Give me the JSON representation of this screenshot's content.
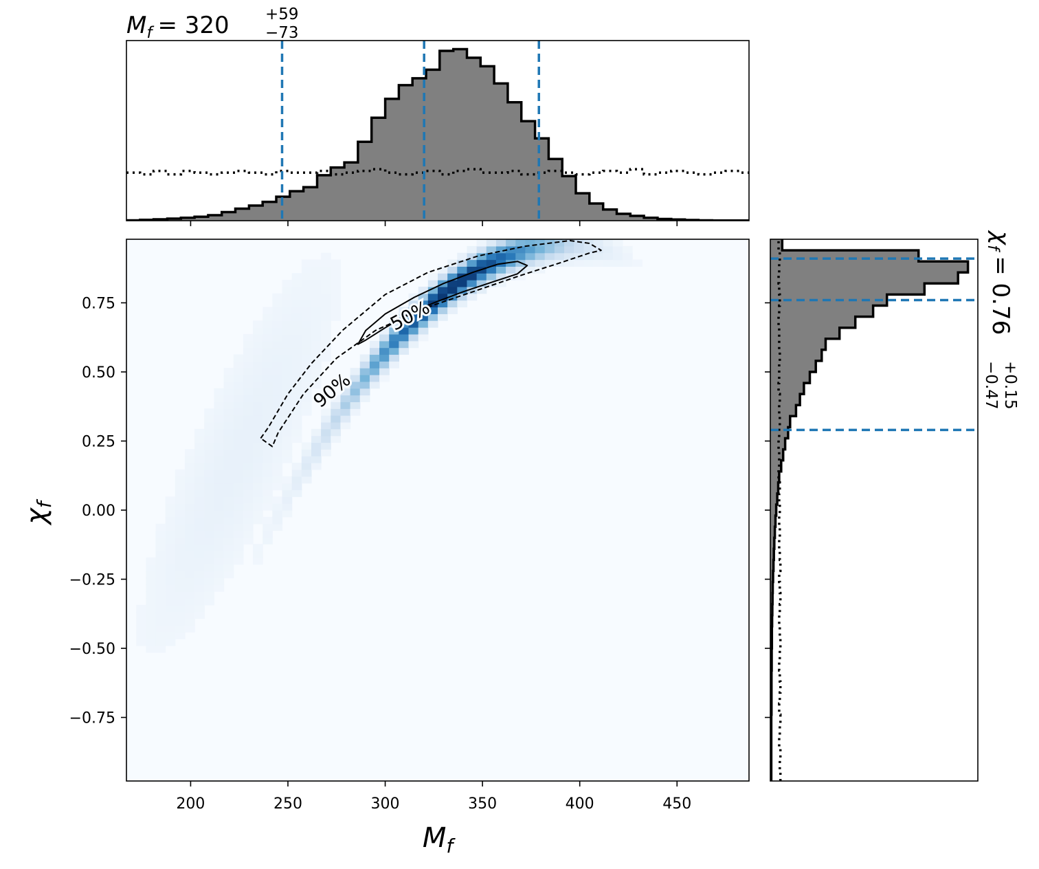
{
  "chart_data": [
    {
      "type": "heatmap",
      "panel": "joint",
      "xlabel": "M_f",
      "ylabel": "χ_f",
      "xlim": [
        167,
        487
      ],
      "ylim": [
        -0.98,
        0.98
      ],
      "xticks": [
        200,
        250,
        300,
        350,
        400,
        450
      ],
      "xtick_labels": [
        "200",
        "250",
        "300",
        "350",
        "400",
        "450"
      ],
      "yticks": [
        0.75,
        0.5,
        0.25,
        0.0,
        -0.25,
        -0.5,
        -0.75
      ],
      "ytick_labels": [
        "0.75",
        "0.50",
        "0.25",
        "0.00",
        "−0.25",
        "−0.50",
        "−0.75"
      ],
      "colormap": "Blues",
      "density_peak": {
        "x": 335,
        "y": 0.81
      },
      "contours": [
        {
          "label": "50%",
          "style": "solid",
          "points": [
            [
              286,
              0.6
            ],
            [
              290,
              0.65
            ],
            [
              300,
              0.71
            ],
            [
              315,
              0.77
            ],
            [
              330,
              0.82
            ],
            [
              345,
              0.86
            ],
            [
              358,
              0.89
            ],
            [
              368,
              0.9
            ],
            [
              373,
              0.885
            ],
            [
              368,
              0.855
            ],
            [
              355,
              0.825
            ],
            [
              340,
              0.79
            ],
            [
              325,
              0.75
            ],
            [
              312,
              0.71
            ],
            [
              300,
              0.66
            ],
            [
              290,
              0.615
            ]
          ]
        },
        {
          "label": "90%",
          "style": "dashed",
          "points": [
            [
              236,
              0.26
            ],
            [
              240,
              0.3
            ],
            [
              250,
              0.42
            ],
            [
              262,
              0.53
            ],
            [
              278,
              0.65
            ],
            [
              300,
              0.78
            ],
            [
              322,
              0.86
            ],
            [
              348,
              0.92
            ],
            [
              372,
              0.955
            ],
            [
              395,
              0.975
            ],
            [
              405,
              0.965
            ],
            [
              411,
              0.94
            ],
            [
              405,
              0.93
            ],
            [
              390,
              0.895
            ],
            [
              370,
              0.85
            ],
            [
              345,
              0.79
            ],
            [
              320,
              0.73
            ],
            [
              295,
              0.65
            ],
            [
              275,
              0.55
            ],
            [
              258,
              0.42
            ],
            [
              245,
              0.28
            ],
            [
              242,
              0.23
            ]
          ]
        }
      ],
      "contour_labels": [
        {
          "text": "50%",
          "x": 313,
          "y": 0.7,
          "angle": -28
        },
        {
          "text": "90%",
          "x": 273,
          "y": 0.43,
          "angle": -40
        }
      ]
    },
    {
      "type": "bar",
      "panel": "top-marginal",
      "title": "M_f = 320 +59 −73",
      "title_parts": {
        "symbol": "M",
        "subscript": "f",
        "equals": "= 320",
        "sup": "+59",
        "sub": "−73"
      },
      "bin_edges": [
        167,
        174,
        181,
        188,
        195,
        202,
        209,
        216,
        223,
        230,
        237,
        244,
        251,
        258,
        265,
        272,
        279,
        286,
        293,
        300,
        307,
        314,
        321,
        328,
        335,
        342,
        349,
        356,
        363,
        370,
        377,
        384,
        391,
        398,
        405,
        412,
        419,
        426,
        433,
        440,
        447,
        454,
        461,
        468,
        475,
        482,
        487
      ],
      "values": [
        0.002,
        0.005,
        0.008,
        0.012,
        0.017,
        0.023,
        0.032,
        0.05,
        0.07,
        0.088,
        0.11,
        0.14,
        0.172,
        0.195,
        0.265,
        0.31,
        0.34,
        0.46,
        0.6,
        0.71,
        0.79,
        0.83,
        0.88,
        0.99,
        1.0,
        0.95,
        0.9,
        0.8,
        0.69,
        0.58,
        0.48,
        0.36,
        0.26,
        0.16,
        0.1,
        0.065,
        0.04,
        0.028,
        0.017,
        0.01,
        0.007,
        0.004,
        0.002,
        0.001,
        0.001,
        0.001
      ],
      "prior_values": [
        0.28,
        0.27,
        0.29,
        0.27,
        0.29,
        0.28,
        0.27,
        0.28,
        0.29,
        0.28,
        0.27,
        0.29,
        0.28,
        0.28,
        0.29,
        0.27,
        0.28,
        0.29,
        0.3,
        0.28,
        0.27,
        0.28,
        0.29,
        0.27,
        0.29,
        0.3,
        0.28,
        0.28,
        0.29,
        0.27,
        0.28,
        0.29,
        0.28,
        0.27,
        0.28,
        0.29,
        0.28,
        0.3,
        0.27,
        0.28,
        0.29,
        0.28,
        0.27,
        0.28,
        0.29,
        0.28
      ],
      "ylim": [
        0,
        1.05
      ],
      "quantile_lines": [
        247,
        320,
        379
      ],
      "quantile_color": "#1f77b4",
      "fill_color": "#808080"
    },
    {
      "type": "bar",
      "panel": "right-marginal",
      "orientation": "horizontal",
      "title": "χ_f = 0.76 +0.15 −0.47",
      "title_parts": {
        "symbol": "χ",
        "subscript": "f",
        "equals": "= 0.76",
        "sup": "+0.15",
        "sub": "−0.47"
      },
      "bin_edges": [
        -0.98,
        -0.94,
        -0.9,
        -0.86,
        -0.82,
        -0.78,
        -0.74,
        -0.7,
        -0.66,
        -0.62,
        -0.58,
        -0.54,
        -0.5,
        -0.46,
        -0.42,
        -0.38,
        -0.34,
        -0.3,
        -0.26,
        -0.22,
        -0.18,
        -0.14,
        -0.1,
        -0.06,
        -0.02,
        0.02,
        0.06,
        0.1,
        0.14,
        0.18,
        0.22,
        0.26,
        0.3,
        0.34,
        0.38,
        0.42,
        0.46,
        0.5,
        0.54,
        0.58,
        0.62,
        0.66,
        0.7,
        0.74,
        0.78,
        0.82,
        0.86,
        0.9,
        0.94,
        0.98
      ],
      "values": [
        0.005,
        0.005,
        0.005,
        0.005,
        0.005,
        0.005,
        0.006,
        0.006,
        0.006,
        0.006,
        0.007,
        0.007,
        0.008,
        0.008,
        0.009,
        0.01,
        0.011,
        0.012,
        0.014,
        0.016,
        0.018,
        0.02,
        0.023,
        0.026,
        0.03,
        0.035,
        0.04,
        0.045,
        0.055,
        0.065,
        0.075,
        0.09,
        0.1,
        0.13,
        0.15,
        0.17,
        0.2,
        0.23,
        0.26,
        0.28,
        0.35,
        0.43,
        0.52,
        0.59,
        0.78,
        0.95,
        1.0,
        0.75,
        0.06
      ],
      "prior_values": [
        0.16,
        0.15,
        0.16,
        0.14,
        0.15,
        0.16,
        0.14,
        0.15,
        0.16,
        0.15,
        0.14,
        0.15,
        0.16,
        0.15,
        0.14,
        0.15,
        0.16,
        0.15,
        0.14,
        0.16,
        0.15,
        0.14,
        0.15,
        0.14,
        0.15,
        0.14,
        0.15,
        0.13,
        0.14,
        0.14,
        0.13,
        0.14,
        0.15,
        0.14,
        0.15,
        0.13,
        0.14,
        0.14,
        0.15,
        0.14,
        0.14,
        0.13,
        0.14,
        0.15,
        0.14,
        0.13,
        0.14,
        0.15,
        0.13
      ],
      "xlim": [
        0,
        1.05
      ],
      "quantile_lines": [
        0.29,
        0.76,
        0.91
      ],
      "quantile_color": "#1f77b4",
      "fill_color": "#808080"
    }
  ]
}
